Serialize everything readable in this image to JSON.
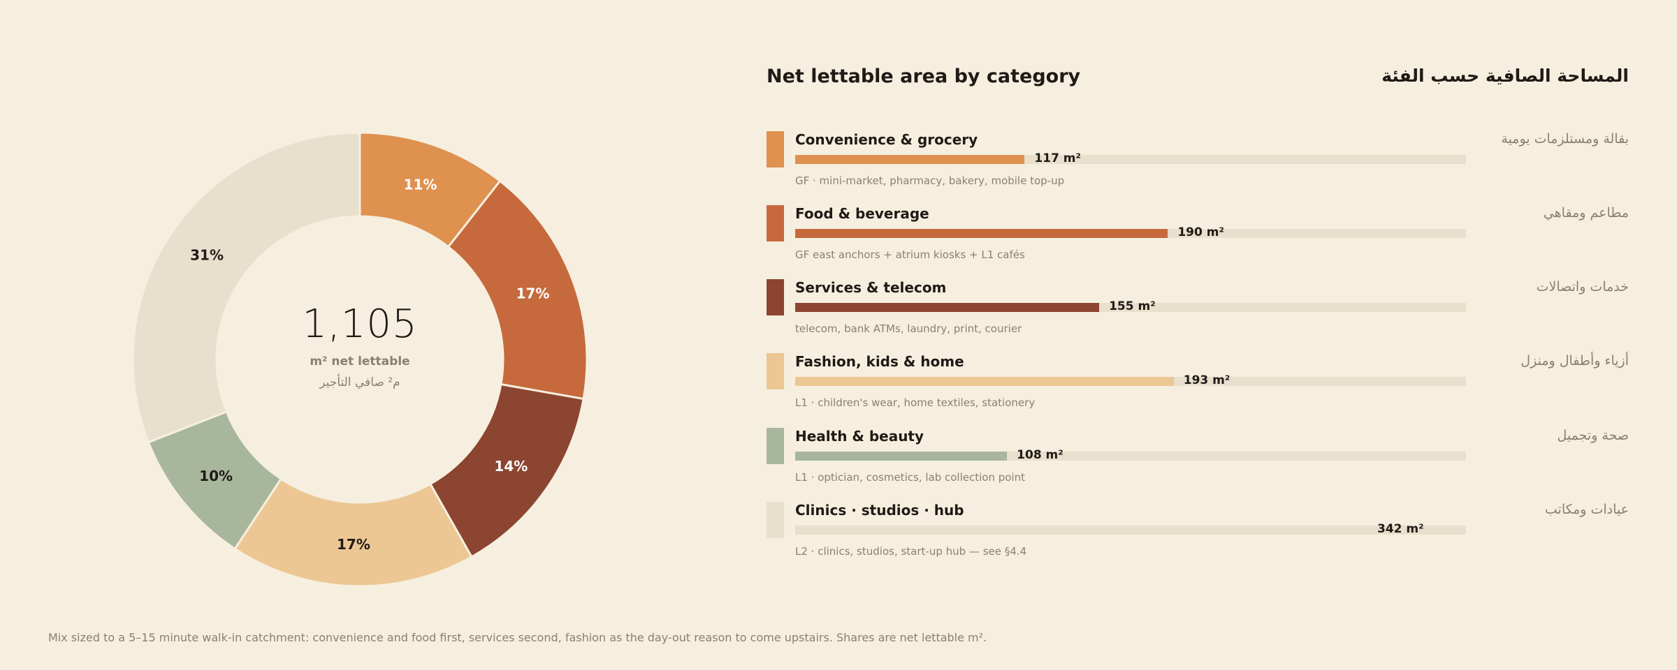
{
  "chart_data": {
    "type": "pie",
    "center_total": "1,105",
    "center_unit": "m² net lettable",
    "center_unit_ar": "م² صافي التأجير",
    "title": "Net lettable area by category",
    "title_ar": "المساحة الصافية حسب الفئة",
    "axis_max": 342,
    "categories": [
      {
        "label": "Convenience & grocery",
        "label_ar": "بقالة ومستلزمات يومية",
        "value": 117,
        "value_label": "117 m²",
        "share_label": "11%",
        "note": "GF · mini-market, pharmacy, bakery, mobile top-up",
        "color": "#df9150"
      },
      {
        "label": "Food & beverage",
        "label_ar": "مطاعم ومقاهي",
        "value": 190,
        "value_label": "190 m²",
        "share_label": "17%",
        "note": "GF east anchors + atrium kiosks + L1 cafés",
        "color": "#c66a3d"
      },
      {
        "label": "Services & telecom",
        "label_ar": "خدمات واتصالات",
        "value": 155,
        "value_label": "155 m²",
        "share_label": "14%",
        "note": "telecom, bank ATMs, laundry, print, courier",
        "color": "#8b4530"
      },
      {
        "label": "Fashion, kids & home",
        "label_ar": "أزياء وأطفال ومنزل",
        "value": 193,
        "value_label": "193 m²",
        "share_label": "17%",
        "note": "L1 · children's wear, home textiles, stationery",
        "color": "#ecc794"
      },
      {
        "label": "Health & beauty",
        "label_ar": "صحة وتجميل",
        "value": 108,
        "value_label": "108 m²",
        "share_label": "10%",
        "note": "L1 · optician, cosmetics, lab collection point",
        "color": "#a8b79b"
      },
      {
        "label": "Clinics · studios · hub",
        "label_ar": "عيادات ومكاتب",
        "value": 342,
        "value_label": "342 m²",
        "share_label": "31%",
        "note": "L2 · clinics, studios, start-up hub — see §4.4",
        "color": "#e8e0cd"
      }
    ]
  },
  "footnote": "Mix sized to a 5–15 minute walk-in catchment: convenience and food first, services second, fashion as the day-out reason to come upstairs. Shares are net lettable m²."
}
